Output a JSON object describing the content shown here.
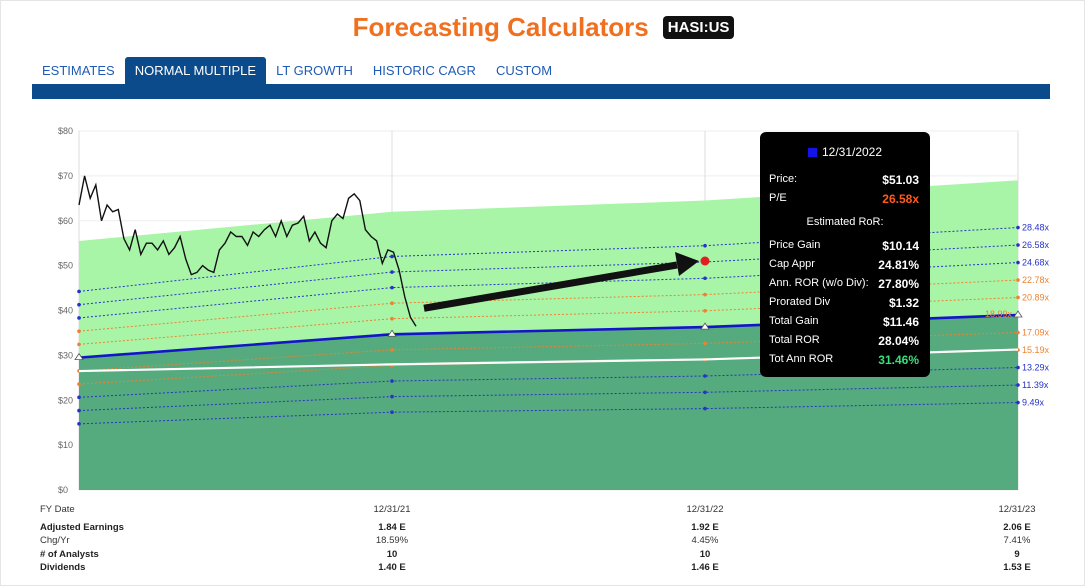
{
  "header": {
    "title": "Forecasting Calculators",
    "ticker": "HASI:US"
  },
  "tabs": [
    {
      "label": "ESTIMATES",
      "active": false
    },
    {
      "label": "NORMAL MULTIPLE",
      "active": true
    },
    {
      "label": "LT GROWTH",
      "active": false
    },
    {
      "label": "HISTORIC CAGR",
      "active": false
    },
    {
      "label": "CUSTOM",
      "active": false
    }
  ],
  "colors": {
    "accent": "#f07020",
    "tab_active": "#0b4a8b",
    "link": "#1f5bb5",
    "fair_value": "#1414c8",
    "normal_pe": "#ffffff",
    "upper_band": "#a8f5a8",
    "lower_band": "#55ab7d"
  },
  "chart_data": {
    "type": "line",
    "ylim": [
      0,
      80
    ],
    "y_ticks": [
      "$0",
      "$10",
      "$20",
      "$30",
      "$40",
      "$50",
      "$60",
      "$70",
      "$80"
    ],
    "x_ticks": [
      "12/31/21",
      "12/31/22",
      "12/31/23"
    ],
    "x_axis_label": "FY Date",
    "price_history": [
      63.5,
      70,
      65,
      68,
      60,
      63.5,
      62,
      62.5,
      56,
      53.5,
      58,
      52.5,
      55,
      55,
      53.5,
      55.5,
      52.5,
      54,
      56.5,
      51.5,
      48,
      48.5,
      50,
      49,
      48.5,
      53.5,
      55,
      57.5,
      56.5,
      56.5,
      54.5,
      57.5,
      56.5,
      58,
      59,
      56.5,
      60,
      56.5,
      59,
      59.5,
      61,
      55.5,
      57.5,
      55,
      54,
      60,
      61.5,
      60.5,
      65,
      66,
      64.5,
      58,
      56.5,
      55.5,
      50.5,
      53.5,
      53,
      49,
      43,
      38.5,
      36.5
    ],
    "fair_value": [
      29.5,
      34.7,
      36.3,
      39.0
    ],
    "normal_pe_line": [
      26.5,
      28.0,
      29.1,
      31.3
    ],
    "band_top": [
      55.5,
      62.0,
      64.5,
      69.0
    ],
    "pe_multiples": [
      "28.48x",
      "26.58x",
      "24.68x",
      "22.78x",
      "20.89x",
      "18.99x",
      "17.09x",
      "15.19x",
      "13.29x",
      "11.39x",
      "9.49x"
    ],
    "tooltip": {
      "date": "12/31/2022",
      "price_label": "Price:",
      "price": "$51.03",
      "pe_label": "P/E",
      "pe": "26.58x",
      "estimated_label": "Estimated RoR:",
      "rows": [
        {
          "label": "Price Gain",
          "value": "$10.14"
        },
        {
          "label": "Cap Appr",
          "value": "24.81%"
        },
        {
          "label": "Ann. ROR (w/o Div):",
          "value": "27.80%"
        },
        {
          "label": "Prorated Div",
          "value": "$1.32"
        },
        {
          "label": "Total Gain",
          "value": "$11.46"
        },
        {
          "label": "Total ROR",
          "value": "28.04%"
        },
        {
          "label": "Tot Ann ROR",
          "value": "31.46%"
        }
      ]
    }
  },
  "table": {
    "row_labels": [
      "Adjusted Earnings",
      "Chg/Yr",
      "# of Analysts",
      "Dividends"
    ],
    "columns": [
      {
        "adjusted_earnings": "1.84 E",
        "chg_yr": "18.59%",
        "analysts": "10",
        "dividends": "1.40 E"
      },
      {
        "adjusted_earnings": "1.92 E",
        "chg_yr": "4.45%",
        "analysts": "10",
        "dividends": "1.46 E"
      },
      {
        "adjusted_earnings": "2.06 E",
        "chg_yr": "7.41%",
        "analysts": "9",
        "dividends": "1.53 E"
      }
    ]
  }
}
